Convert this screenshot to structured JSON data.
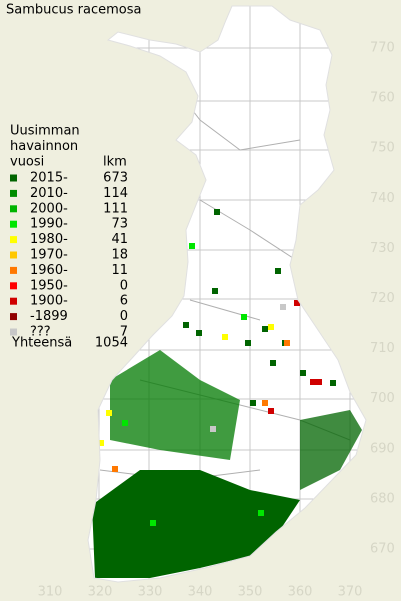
{
  "title": "Sambucus racemosa",
  "legend": {
    "heading": [
      "Uusimman",
      "havainnon",
      "vuosi"
    ],
    "count_heading": "lkm",
    "items": [
      {
        "label": "2015-",
        "count": 673,
        "color": "#006400"
      },
      {
        "label": "2010-",
        "count": 114,
        "color": "#008c00"
      },
      {
        "label": "2000-",
        "count": 111,
        "color": "#00b400"
      },
      {
        "label": "1990-",
        "count": 73,
        "color": "#00e600"
      },
      {
        "label": "1980-",
        "count": 41,
        "color": "#ffff00"
      },
      {
        "label": "1970-",
        "count": 18,
        "color": "#ffc800"
      },
      {
        "label": "1960-",
        "count": 11,
        "color": "#ff7800"
      },
      {
        "label": "1950-",
        "count": 0,
        "color": "#ff0000"
      },
      {
        "label": "1900-",
        "count": 6,
        "color": "#d00000"
      },
      {
        "label": "-1899",
        "count": 0,
        "color": "#900000"
      },
      {
        "label": "???",
        "count": 7,
        "color": "#c8c8c8"
      }
    ],
    "total_label": "Yhteensä",
    "total": 1054
  },
  "grid_labels_y": [
    770,
    760,
    750,
    740,
    730,
    720,
    710,
    700,
    690,
    680,
    670
  ],
  "grid_labels_x": [
    310,
    320,
    330,
    340,
    350,
    360,
    370
  ]
}
